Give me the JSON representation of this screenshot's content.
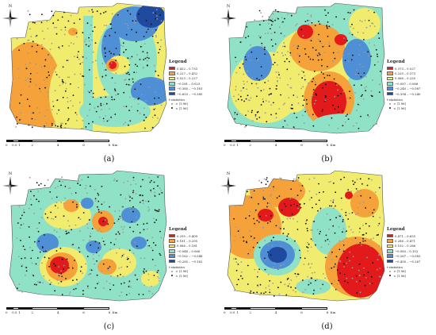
{
  "panels": [
    {
      "label": "(a)",
      "legend_title": "Legend",
      "classes": [
        {
          "range": "0.432 – 0.733",
          "color": "#e31a1c"
        },
        {
          "range": "0.227 – 0.432",
          "color": "#f5a23a"
        },
        {
          "range": "0.023 – 0.227",
          "color": "#f2ec6e"
        },
        {
          "range": "−0.181 – 0.023",
          "color": "#8fe2c6"
        },
        {
          "range": "−0.385 – −0.181",
          "color": "#4f8fd6"
        },
        {
          "range": "−0.653 – −0.385",
          "color": "#1f4aa0"
        }
      ],
      "stat_title": "t-statistics",
      "stat_gt": "> |1.96|",
      "stat_lt": "< |1.96|",
      "survey": "Survey area"
    },
    {
      "label": "(b)",
      "legend_title": "Legend",
      "classes": [
        {
          "range": "0.373 – 0.527",
          "color": "#e31a1c"
        },
        {
          "range": "0.220 – 0.373",
          "color": "#f5a23a"
        },
        {
          "range": "0.066 – 0.220",
          "color": "#f2ec6e"
        },
        {
          "range": "−0.087 – 0.066",
          "color": "#8fe2c6"
        },
        {
          "range": "−0.240 – −0.087",
          "color": "#4f8fd6"
        },
        {
          "range": "−0.394 – −0.240",
          "color": "#1f4aa0"
        }
      ],
      "stat_title": "t-statistics",
      "stat_gt": "> |1.96|",
      "stat_lt": "< |1.96|",
      "survey": "Survey area"
    },
    {
      "label": "(c)",
      "legend_title": "Legend",
      "classes": [
        {
          "range": "0.295 – 0.409",
          "color": "#e31a1c"
        },
        {
          "range": "0.181 – 0.295",
          "color": "#f5a23a"
        },
        {
          "range": "0.066 – 0.181",
          "color": "#f2ec6e"
        },
        {
          "range": "−0.048 – 0.066",
          "color": "#8fe2c6"
        },
        {
          "range": "−0.162 – −0.048",
          "color": "#4f8fd6"
        },
        {
          "range": "−0.285 – −0.162",
          "color": "#1f4aa0"
        }
      ],
      "stat_title": "t-statistics",
      "stat_gt": "> |1.96|",
      "stat_lt": "< |1.96|",
      "survey": "Survey area"
    },
    {
      "label": "(d)",
      "legend_title": "Legend",
      "classes": [
        {
          "range": "0.471 – 0.655",
          "color": "#e31a1c"
        },
        {
          "range": "0.286 – 0.471",
          "color": "#f5a23a"
        },
        {
          "range": "0.102 – 0.286",
          "color": "#f2ec6e"
        },
        {
          "range": "−0.083 – 0.102",
          "color": "#8fe2c6"
        },
        {
          "range": "−0.267 – −0.083",
          "color": "#4f8fd6"
        },
        {
          "range": "−0.450 – −0.267",
          "color": "#1f4aa0"
        }
      ],
      "stat_title": "t-statistics",
      "stat_gt": "> |1.96|",
      "stat_lt": "< |1.96|",
      "survey": "Survey area"
    }
  ],
  "scale": {
    "ticks": [
      "0",
      "0.5",
      "1",
      "2",
      "4",
      "6",
      "8"
    ],
    "unit": "Km"
  },
  "north_label": "N"
}
